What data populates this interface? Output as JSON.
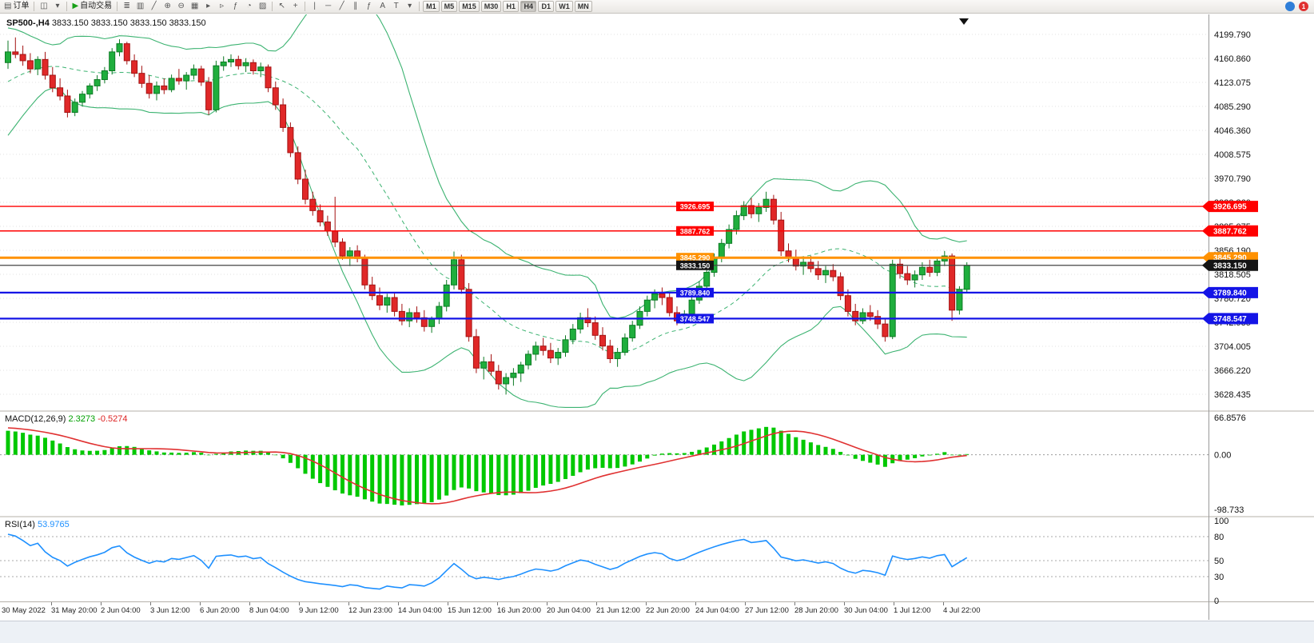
{
  "toolbar": {
    "groups": [
      [
        {
          "id": "new-order",
          "glyph": "▤",
          "label": "订单"
        }
      ],
      [
        {
          "id": "new-chart",
          "glyph": "◫"
        },
        {
          "id": "profiles",
          "glyph": "▾"
        }
      ],
      [
        {
          "id": "autotrading",
          "glyph": "▶",
          "label": "自动交易",
          "glyph_color": "#18a018"
        }
      ],
      [
        {
          "id": "bar-chart",
          "glyph": "≣"
        },
        {
          "id": "candlestick-chart",
          "glyph": "▥"
        },
        {
          "id": "line-chart",
          "glyph": "╱"
        },
        {
          "id": "zoom-in",
          "glyph": "⊕"
        },
        {
          "id": "zoom-out",
          "glyph": "⊖"
        },
        {
          "id": "tile-windows",
          "glyph": "▦"
        },
        {
          "id": "auto-scroll",
          "glyph": "▸"
        },
        {
          "id": "chart-shift",
          "glyph": "▹"
        },
        {
          "id": "indicators",
          "glyph": "ƒ"
        },
        {
          "id": "periods",
          "glyph": "◔"
        },
        {
          "id": "templates",
          "glyph": "▨"
        }
      ],
      [
        {
          "id": "cursor",
          "glyph": "↖"
        },
        {
          "id": "crosshair",
          "glyph": "+"
        }
      ],
      [
        {
          "id": "vertical-line",
          "glyph": "|"
        },
        {
          "id": "horizontal-line",
          "glyph": "─"
        },
        {
          "id": "trendline",
          "glyph": "╱"
        },
        {
          "id": "channel",
          "glyph": "∥"
        },
        {
          "id": "fibonacci",
          "glyph": "ƒ"
        },
        {
          "id": "text",
          "glyph": "A"
        },
        {
          "id": "text-label",
          "glyph": "T"
        },
        {
          "id": "arrows",
          "glyph": "▾"
        }
      ]
    ],
    "timeframes": [
      "M1",
      "M5",
      "M15",
      "M30",
      "H1",
      "H4",
      "D1",
      "W1",
      "MN"
    ],
    "active_timeframe": "H4",
    "status_icons": [
      {
        "id": "community",
        "color": "#2f7ed8",
        "badge": ""
      },
      {
        "id": "notifications",
        "color": "#e03131",
        "badge": "1"
      }
    ]
  },
  "chart": {
    "title": {
      "symbol": "SP500-,H4",
      "ohlc": "3833.150 3833.150 3833.150 3833.150"
    },
    "scale": {
      "top_tick_price": 4199.79,
      "bottom_tick_price": 3628.435
    },
    "price_axis": {
      "ticks": [
        "4199.790",
        "4160.860",
        "4123.075",
        "4085.290",
        "4046.360",
        "4008.575",
        "3970.790",
        "3932.860",
        "3895.075",
        "3856.190",
        "3818.505",
        "3780.720",
        "3742.935",
        "3704.005",
        "3666.220",
        "3628.435"
      ]
    },
    "levels": [
      {
        "price": 3926.695,
        "label": "3926.695",
        "color": "#ff0000",
        "width": 1.4
      },
      {
        "price": 3887.762,
        "label": "3887.762",
        "color": "#ff0000",
        "width": 1.4
      },
      {
        "price": 3845.29,
        "label": "3845.290",
        "color": "#ff9100",
        "width": 3
      },
      {
        "price": 3833.15,
        "label": "3833.150",
        "color": "#444444",
        "width": 1.2,
        "badge_color": "#141414"
      },
      {
        "price": 3789.84,
        "label": "3789.840",
        "color": "#1414e6",
        "width": 2.2
      },
      {
        "price": 3748.547,
        "label": "3748.547",
        "color": "#1414e6",
        "width": 2.2
      }
    ],
    "colors": {
      "up": "#1fae3d",
      "up_stroke": "#0d7a24",
      "down": "#e02828",
      "down_stroke": "#a31212"
    },
    "bollinger": {
      "period": 20,
      "deviation": 2,
      "color": "#3CB371"
    },
    "warmup_closes": [
      3952,
      3960,
      3974,
      3985,
      3996,
      4008,
      4020,
      4034,
      4046,
      4060,
      4072,
      4086,
      4098,
      4110,
      4124,
      4136,
      4150,
      4142,
      4155,
      4165,
      4158,
      4170,
      4162,
      4155,
      4148,
      4152
    ],
    "candles": [
      [
        4155,
        4190,
        4145,
        4172
      ],
      [
        4172,
        4195,
        4162,
        4168
      ],
      [
        4168,
        4182,
        4150,
        4158
      ],
      [
        4158,
        4170,
        4138,
        4145
      ],
      [
        4145,
        4165,
        4135,
        4160
      ],
      [
        4160,
        4172,
        4128,
        4135
      ],
      [
        4135,
        4148,
        4108,
        4115
      ],
      [
        4115,
        4130,
        4095,
        4102
      ],
      [
        4102,
        4112,
        4068,
        4076
      ],
      [
        4076,
        4098,
        4070,
        4092
      ],
      [
        4092,
        4110,
        4085,
        4105
      ],
      [
        4105,
        4122,
        4098,
        4118
      ],
      [
        4118,
        4135,
        4110,
        4128
      ],
      [
        4128,
        4148,
        4122,
        4142
      ],
      [
        4142,
        4178,
        4136,
        4172
      ],
      [
        4172,
        4192,
        4165,
        4185
      ],
      [
        4185,
        4188,
        4152,
        4158
      ],
      [
        4158,
        4168,
        4132,
        4138
      ],
      [
        4138,
        4150,
        4115,
        4122
      ],
      [
        4122,
        4135,
        4098,
        4106
      ],
      [
        4106,
        4125,
        4095,
        4118
      ],
      [
        4118,
        4130,
        4105,
        4112
      ],
      [
        4112,
        4136,
        4108,
        4130
      ],
      [
        4130,
        4145,
        4120,
        4126
      ],
      [
        4126,
        4140,
        4112,
        4135
      ],
      [
        4135,
        4152,
        4128,
        4145
      ],
      [
        4145,
        4150,
        4118,
        4124
      ],
      [
        4124,
        4132,
        4072,
        4080
      ],
      [
        4080,
        4158,
        4076,
        4150
      ],
      [
        4150,
        4165,
        4142,
        4156
      ],
      [
        4156,
        4168,
        4148,
        4160
      ],
      [
        4160,
        4166,
        4144,
        4150
      ],
      [
        4150,
        4162,
        4140,
        4155
      ],
      [
        4155,
        4160,
        4136,
        4142
      ],
      [
        4142,
        4155,
        4132,
        4148
      ],
      [
        4148,
        4152,
        4108,
        4115
      ],
      [
        4115,
        4125,
        4080,
        4088
      ],
      [
        4088,
        4098,
        4045,
        4052
      ],
      [
        4052,
        4060,
        4005,
        4012
      ],
      [
        4012,
        4022,
        3962,
        3970
      ],
      [
        3970,
        3985,
        3930,
        3938
      ],
      [
        3938,
        3950,
        3912,
        3920
      ],
      [
        3920,
        3930,
        3895,
        3902
      ],
      [
        3902,
        3912,
        3880,
        3888
      ],
      [
        3888,
        3942,
        3862,
        3870
      ],
      [
        3870,
        3876,
        3842,
        3848
      ],
      [
        3848,
        3862,
        3832,
        3856
      ],
      [
        3856,
        3865,
        3838,
        3844
      ],
      [
        3844,
        3850,
        3795,
        3802
      ],
      [
        3802,
        3815,
        3778,
        3785
      ],
      [
        3785,
        3798,
        3762,
        3770
      ],
      [
        3770,
        3788,
        3758,
        3782
      ],
      [
        3782,
        3790,
        3752,
        3760
      ],
      [
        3760,
        3772,
        3738,
        3745
      ],
      [
        3745,
        3765,
        3735,
        3758
      ],
      [
        3758,
        3768,
        3742,
        3750
      ],
      [
        3750,
        3762,
        3728,
        3736
      ],
      [
        3736,
        3752,
        3726,
        3748
      ],
      [
        3748,
        3775,
        3740,
        3768
      ],
      [
        3768,
        3810,
        3760,
        3802
      ],
      [
        3802,
        3855,
        3795,
        3842
      ],
      [
        3842,
        3850,
        3788,
        3795
      ],
      [
        3795,
        3805,
        3712,
        3720
      ],
      [
        3720,
        3732,
        3662,
        3670
      ],
      [
        3670,
        3688,
        3652,
        3680
      ],
      [
        3680,
        3692,
        3658,
        3665
      ],
      [
        3665,
        3675,
        3636,
        3645
      ],
      [
        3645,
        3662,
        3628,
        3655
      ],
      [
        3655,
        3670,
        3642,
        3662
      ],
      [
        3662,
        3680,
        3648,
        3675
      ],
      [
        3675,
        3698,
        3668,
        3692
      ],
      [
        3692,
        3712,
        3682,
        3705
      ],
      [
        3705,
        3718,
        3690,
        3698
      ],
      [
        3698,
        3710,
        3678,
        3686
      ],
      [
        3686,
        3702,
        3675,
        3695
      ],
      [
        3695,
        3722,
        3688,
        3715
      ],
      [
        3715,
        3740,
        3708,
        3732
      ],
      [
        3732,
        3758,
        3725,
        3750
      ],
      [
        3750,
        3765,
        3735,
        3742
      ],
      [
        3742,
        3752,
        3715,
        3722
      ],
      [
        3722,
        3735,
        3698,
        3705
      ],
      [
        3705,
        3715,
        3678,
        3685
      ],
      [
        3685,
        3702,
        3672,
        3695
      ],
      [
        3695,
        3725,
        3690,
        3718
      ],
      [
        3718,
        3745,
        3712,
        3738
      ],
      [
        3738,
        3768,
        3732,
        3760
      ],
      [
        3760,
        3785,
        3752,
        3778
      ],
      [
        3778,
        3795,
        3765,
        3788
      ],
      [
        3788,
        3798,
        3770,
        3782
      ],
      [
        3782,
        3790,
        3752,
        3758
      ],
      [
        3758,
        3768,
        3738,
        3745
      ],
      [
        3745,
        3762,
        3740,
        3756
      ],
      [
        3756,
        3785,
        3750,
        3778
      ],
      [
        3778,
        3808,
        3772,
        3800
      ],
      [
        3800,
        3828,
        3795,
        3822
      ],
      [
        3822,
        3852,
        3815,
        3845
      ],
      [
        3845,
        3875,
        3838,
        3868
      ],
      [
        3868,
        3898,
        3860,
        3890
      ],
      [
        3890,
        3920,
        3882,
        3912
      ],
      [
        3912,
        3935,
        3905,
        3928
      ],
      [
        3928,
        3940,
        3908,
        3915
      ],
      [
        3915,
        3932,
        3902,
        3925
      ],
      [
        3925,
        3950,
        3918,
        3938
      ],
      [
        3938,
        3945,
        3898,
        3905
      ],
      [
        3905,
        3918,
        3848,
        3856
      ],
      [
        3856,
        3868,
        3838,
        3845
      ],
      [
        3845,
        3858,
        3825,
        3832
      ],
      [
        3832,
        3845,
        3818,
        3838
      ],
      [
        3838,
        3848,
        3822,
        3828
      ],
      [
        3828,
        3840,
        3810,
        3818
      ],
      [
        3818,
        3832,
        3805,
        3825
      ],
      [
        3825,
        3835,
        3808,
        3815
      ],
      [
        3815,
        3822,
        3778,
        3785
      ],
      [
        3785,
        3795,
        3752,
        3760
      ],
      [
        3760,
        3772,
        3738,
        3745
      ],
      [
        3745,
        3765,
        3740,
        3758
      ],
      [
        3758,
        3770,
        3745,
        3752
      ],
      [
        3752,
        3762,
        3732,
        3740
      ],
      [
        3740,
        3748,
        3712,
        3720
      ],
      [
        3720,
        3842,
        3716,
        3835
      ],
      [
        3835,
        3845,
        3812,
        3820
      ],
      [
        3820,
        3832,
        3802,
        3810
      ],
      [
        3810,
        3825,
        3798,
        3818
      ],
      [
        3818,
        3838,
        3810,
        3830
      ],
      [
        3830,
        3842,
        3815,
        3822
      ],
      [
        3822,
        3845,
        3816,
        3840
      ],
      [
        3840,
        3856,
        3832,
        3848
      ],
      [
        3848,
        3852,
        3745,
        3762
      ],
      [
        3762,
        3800,
        3755,
        3795
      ],
      [
        3795,
        3838,
        3790,
        3833.15
      ]
    ]
  },
  "macd": {
    "label": "MACD(12,26,9)",
    "value_main": "2.3273",
    "value_signal": "-0.5274",
    "fast": 12,
    "slow": 26,
    "smoothing": 9,
    "scale_max": 66.8576,
    "scale_min": -98.733,
    "axis": [
      "66.8576",
      "0.00",
      "-98.733"
    ],
    "hist_color": "#00c800",
    "signal_color": "#e03131"
  },
  "rsi": {
    "label": "RSI(14)",
    "value": "53.9765",
    "period": 14,
    "levels": [
      80,
      50,
      30
    ],
    "axis": [
      "100",
      "80",
      "50",
      "30",
      "0"
    ],
    "color": "#1e90ff"
  },
  "time_axis": {
    "labels": [
      "30 May 2022",
      "31 May 20:00",
      "2 Jun 04:00",
      "3 Jun 12:00",
      "6 Jun 20:00",
      "8 Jun 04:00",
      "9 Jun 12:00",
      "12 Jun 23:00",
      "14 Jun 04:00",
      "15 Jun 12:00",
      "16 Jun 20:00",
      "20 Jun 04:00",
      "21 Jun 12:00",
      "22 Jun 20:00",
      "24 Jun 04:00",
      "27 Jun 12:00",
      "28 Jun 20:00",
      "30 Jun 04:00",
      "1 Jul 12:00",
      "4 Jul 22:00"
    ]
  }
}
